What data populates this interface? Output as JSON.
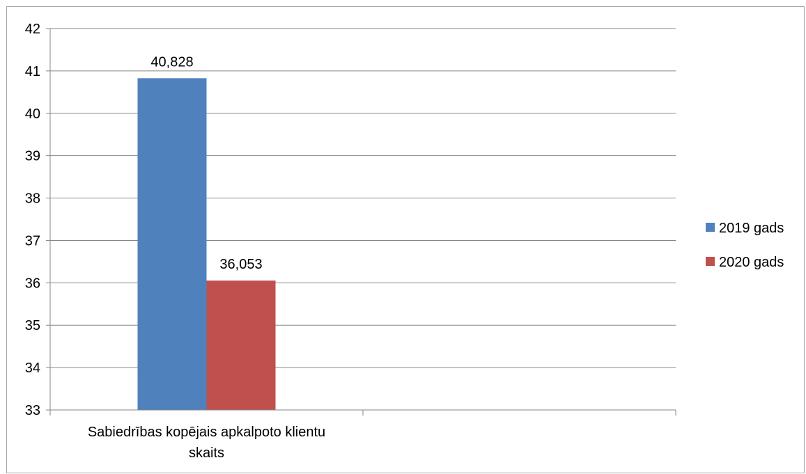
{
  "chart_data": {
    "type": "bar",
    "title": "",
    "xlabel": "",
    "ylabel": "",
    "categories": [
      "Sabiedrības kopējais apkalpoto klientu skaits",
      ""
    ],
    "category_label_lines": [
      [
        "Sabiedrības kopējais apkalpoto klientu",
        "skaits"
      ],
      []
    ],
    "series": [
      {
        "name": "2019 gads",
        "color": "#4f81bd",
        "values": [
          40.828,
          null
        ],
        "labels": [
          "40,828",
          ""
        ]
      },
      {
        "name": "2020 gads",
        "color": "#c0504d",
        "values": [
          36.053,
          null
        ],
        "labels": [
          "36,053",
          ""
        ]
      }
    ],
    "ylim": [
      33,
      42
    ],
    "yticks": [
      33,
      34,
      35,
      36,
      37,
      38,
      39,
      40,
      41,
      42
    ],
    "grid": true,
    "legend_position": "right"
  }
}
